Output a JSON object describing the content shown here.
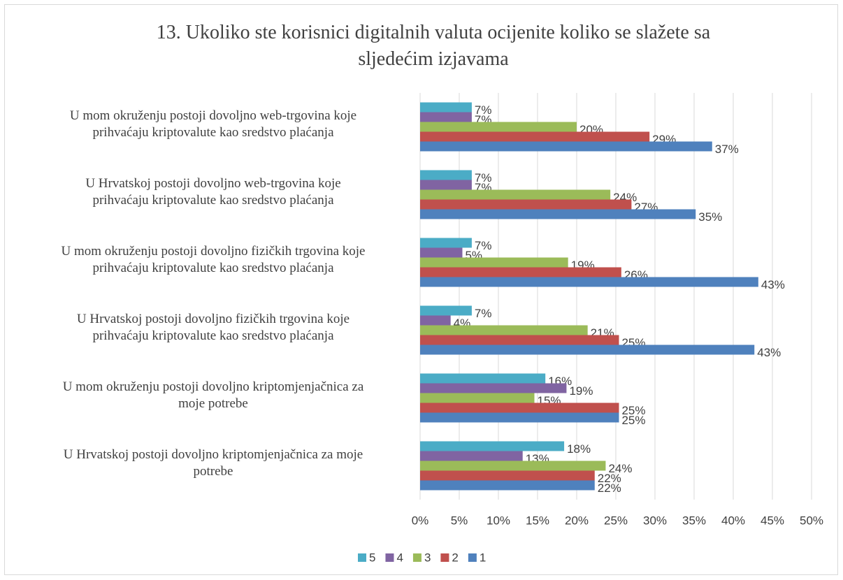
{
  "chart_data": {
    "type": "bar",
    "orientation": "horizontal",
    "title": "13. Ukoliko ste korisnici digitalnih valuta ocijenite koliko se slažete sa\nsljedećim izjavama",
    "categories": [
      "U mom okruženju postoji dovoljno web-trgovina koje\nprihvaćaju kriptovalute kao sredstvo plaćanja",
      "U Hrvatskoj postoji dovoljno web-trgovina koje\nprihvaćaju kriptovalute kao sredstvo plaćanja",
      "U mom okruženju postoji dovoljno fizičkih trgovina koje\nprihvaćaju kriptovalute kao sredstvo plaćanja",
      "U Hrvatskoj postoji dovoljno fizičkih trgovina koje\nprihvaćaju kriptovalute kao sredstvo plaćanja",
      "U mom okruženju postoji dovoljno kriptomjenjačnica za\nmoje potrebe",
      "U Hrvatskoj postoji dovoljno kriptomjenjačnica za moje\npotrebe"
    ],
    "series": [
      {
        "name": "5",
        "color": "#4bacc6",
        "values": [
          6.6,
          6.6,
          6.6,
          6.6,
          16.0,
          18.4
        ],
        "value_labels": [
          "7%",
          "7%",
          "7%",
          "7%",
          "16%",
          "18%"
        ]
      },
      {
        "name": "4",
        "color": "#8064a2",
        "values": [
          6.6,
          6.6,
          5.4,
          3.9,
          18.7,
          13.1
        ],
        "value_labels": [
          "7%",
          "7%",
          "5%",
          "4%",
          "19%",
          "13%"
        ]
      },
      {
        "name": "3",
        "color": "#9bbb59",
        "values": [
          20.0,
          24.3,
          18.9,
          21.4,
          14.6,
          23.7
        ],
        "value_labels": [
          "20%",
          "24%",
          "19%",
          "21%",
          "15%",
          "24%"
        ]
      },
      {
        "name": "2",
        "color": "#c0504d",
        "values": [
          29.3,
          27.0,
          25.7,
          25.4,
          25.4,
          22.3
        ],
        "value_labels": [
          "29%",
          "27%",
          "26%",
          "25%",
          "25%",
          "22%"
        ]
      },
      {
        "name": "1",
        "color": "#4f81bd",
        "values": [
          37.3,
          35.2,
          43.2,
          42.7,
          25.4,
          22.3
        ],
        "value_labels": [
          "37%",
          "35%",
          "43%",
          "43%",
          "25%",
          "22%"
        ]
      }
    ],
    "xlim": [
      0,
      50
    ],
    "xticks": [
      {
        "value": 0,
        "label": "0%"
      },
      {
        "value": 5,
        "label": "5%"
      },
      {
        "value": 10,
        "label": "10%"
      },
      {
        "value": 15,
        "label": "15%"
      },
      {
        "value": 20,
        "label": "20%"
      },
      {
        "value": 25,
        "label": "25%"
      },
      {
        "value": 30,
        "label": "30%"
      },
      {
        "value": 35,
        "label": "35%"
      },
      {
        "value": 40,
        "label": "40%"
      },
      {
        "value": 45,
        "label": "45%"
      },
      {
        "value": 50,
        "label": "50%"
      }
    ],
    "grid": true,
    "legend": "bottom"
  }
}
